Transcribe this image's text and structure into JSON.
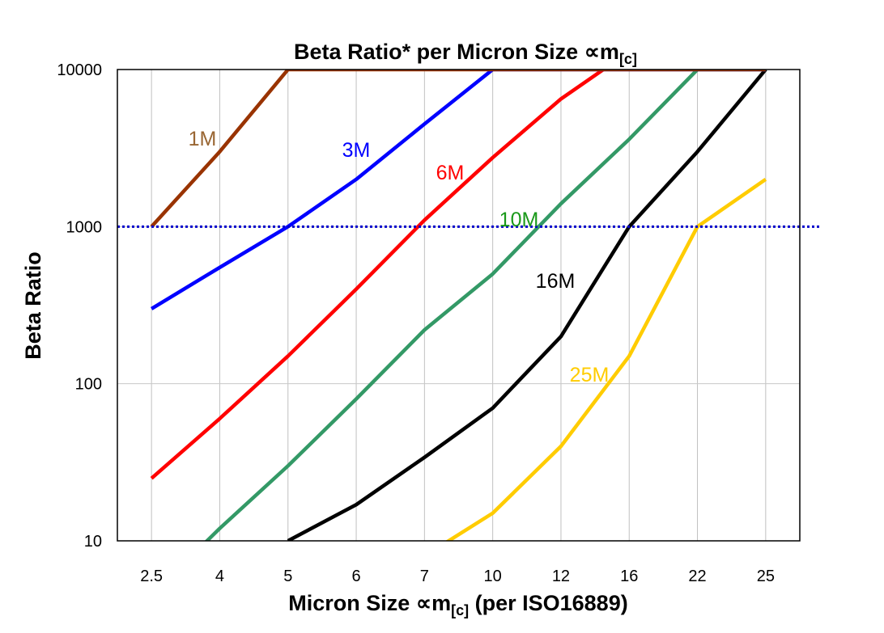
{
  "chart_data": {
    "type": "line",
    "title": "Beta Ratio* per Micron Size ∝m",
    "title_sub": "[c]",
    "xlabel": "Micron Size ∝m",
    "xlabel_sub": "[c]",
    "xlabel_suffix": " (per ISO16889)",
    "ylabel": "Beta Ratio",
    "y_scale": "log",
    "ylim": [
      10,
      10000
    ],
    "y_ticks": [
      "10",
      "100",
      "1000",
      "10000"
    ],
    "categories": [
      "2.5",
      "4",
      "5",
      "6",
      "7",
      "10",
      "12",
      "16",
      "22",
      "25"
    ],
    "grid": true,
    "reference_line": {
      "y": 1000,
      "style": "dotted",
      "color": "#0000cc"
    },
    "series": [
      {
        "name": "25M",
        "color": "#ffcc00",
        "label_color": "#ffcc00",
        "values": [
          null,
          null,
          null,
          null,
          8,
          15,
          40,
          150,
          1000,
          2000
        ]
      },
      {
        "name": "16M",
        "color": "#000000",
        "label_color": "#000000",
        "values": [
          null,
          null,
          10,
          17,
          34,
          70,
          200,
          1000,
          3000,
          10000
        ]
      },
      {
        "name": "10M",
        "color": "#339966",
        "label_color": "#1a991a",
        "values": [
          4.5,
          12,
          30,
          80,
          220,
          500,
          1400,
          3600,
          10000,
          10000
        ]
      },
      {
        "name": "6M",
        "color": "#ff0000",
        "label_color": "#ff0000",
        "values": [
          25,
          60,
          150,
          400,
          1100,
          2750,
          6500,
          13000,
          13000,
          13000
        ]
      },
      {
        "name": "3M",
        "color": "#0000ff",
        "label_color": "#0000ff",
        "values": [
          300,
          550,
          1000,
          2000,
          4500,
          10000,
          10000,
          10000,
          10000,
          10000
        ]
      },
      {
        "name": "1M",
        "color": "#993300",
        "label_color": "#996633",
        "values": [
          1000,
          3000,
          10000,
          10000,
          10000,
          10000,
          10000,
          10000,
          10000,
          10000
        ]
      }
    ]
  }
}
